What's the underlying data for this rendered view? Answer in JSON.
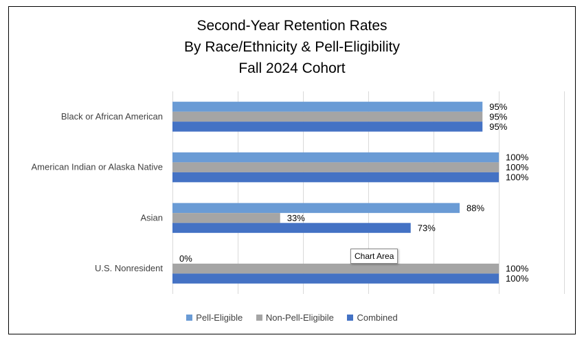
{
  "chart_data": {
    "type": "bar",
    "orientation": "horizontal",
    "title_lines": [
      "Second-Year Retention Rates",
      "By Race/Ethnicity & Pell-Eligibility",
      "Fall 2024 Cohort"
    ],
    "categories": [
      "Black or African American",
      "American Indian or Alaska Native",
      "Asian",
      "U.S. Nonresident"
    ],
    "series": [
      {
        "name": "Pell-Eligible",
        "color": "#6a9bd5",
        "values": [
          95,
          100,
          88,
          0
        ],
        "labels": [
          "95%",
          "100%",
          "88%",
          "0%"
        ]
      },
      {
        "name": "Non-Pell-Eligibile",
        "color": "#a5a5a5",
        "values": [
          95,
          100,
          33,
          100
        ],
        "labels": [
          "95%",
          "100%",
          "33%",
          "100%"
        ]
      },
      {
        "name": "Combined",
        "color": "#4472c4",
        "values": [
          95,
          100,
          73,
          100
        ],
        "labels": [
          "95%",
          "100%",
          "73%",
          "100%"
        ]
      }
    ],
    "xlim": [
      0,
      120
    ],
    "grid": true,
    "legend_position": "bottom"
  },
  "tooltip": {
    "text": "Chart Area"
  }
}
